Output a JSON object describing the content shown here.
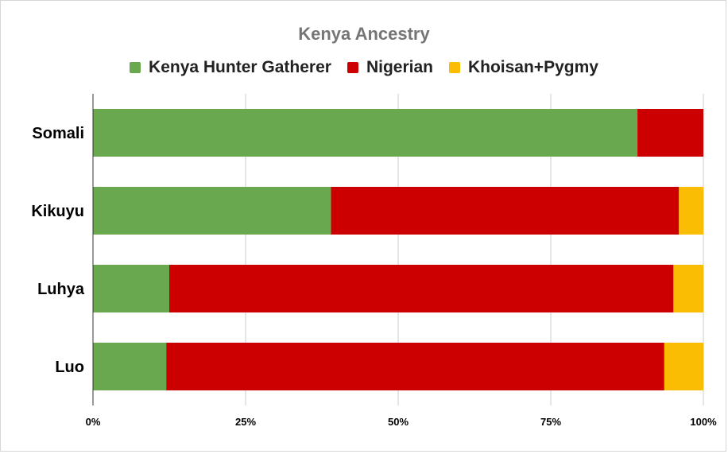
{
  "chart_data": {
    "type": "bar",
    "orientation": "horizontal",
    "stacked": "percent",
    "title": "Kenya Ancestry",
    "categories": [
      "Somali",
      "Kikuyu",
      "Luhya",
      "Luo"
    ],
    "series": [
      {
        "name": "Kenya Hunter Gatherer",
        "color": "#6aa84f",
        "values": [
          89.2,
          39.0,
          12.5,
          12.0
        ]
      },
      {
        "name": "Nigerian",
        "color": "#cc0000",
        "values": [
          10.8,
          57.0,
          82.6,
          81.6
        ]
      },
      {
        "name": "Khoisan+Pygmy",
        "color": "#fbbc04",
        "values": [
          0.0,
          4.0,
          4.9,
          6.4
        ]
      }
    ],
    "xticks": [
      "0%",
      "25%",
      "50%",
      "75%",
      "100%"
    ],
    "xlim": [
      0,
      100
    ],
    "grid": true,
    "legend_position": "top"
  }
}
